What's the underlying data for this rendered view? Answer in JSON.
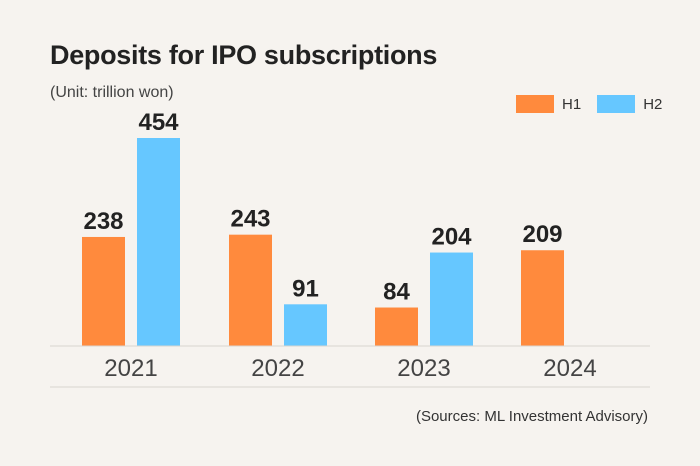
{
  "chart_data": {
    "type": "bar",
    "title": "Deposits for IPO subscriptions",
    "subtitle": "(Unit: trillion won)",
    "categories": [
      "2021",
      "2022",
      "2023",
      "2024"
    ],
    "series": [
      {
        "name": "H1",
        "color": "#ff8a3d",
        "values": [
          238,
          243,
          84,
          209
        ]
      },
      {
        "name": "H2",
        "color": "#66c7ff",
        "values": [
          454,
          91,
          204,
          null
        ]
      }
    ],
    "ylim": [
      0,
      454
    ],
    "grid": false,
    "legend_position": "top-right",
    "source": "(Sources: ML Investment Advisory)"
  }
}
